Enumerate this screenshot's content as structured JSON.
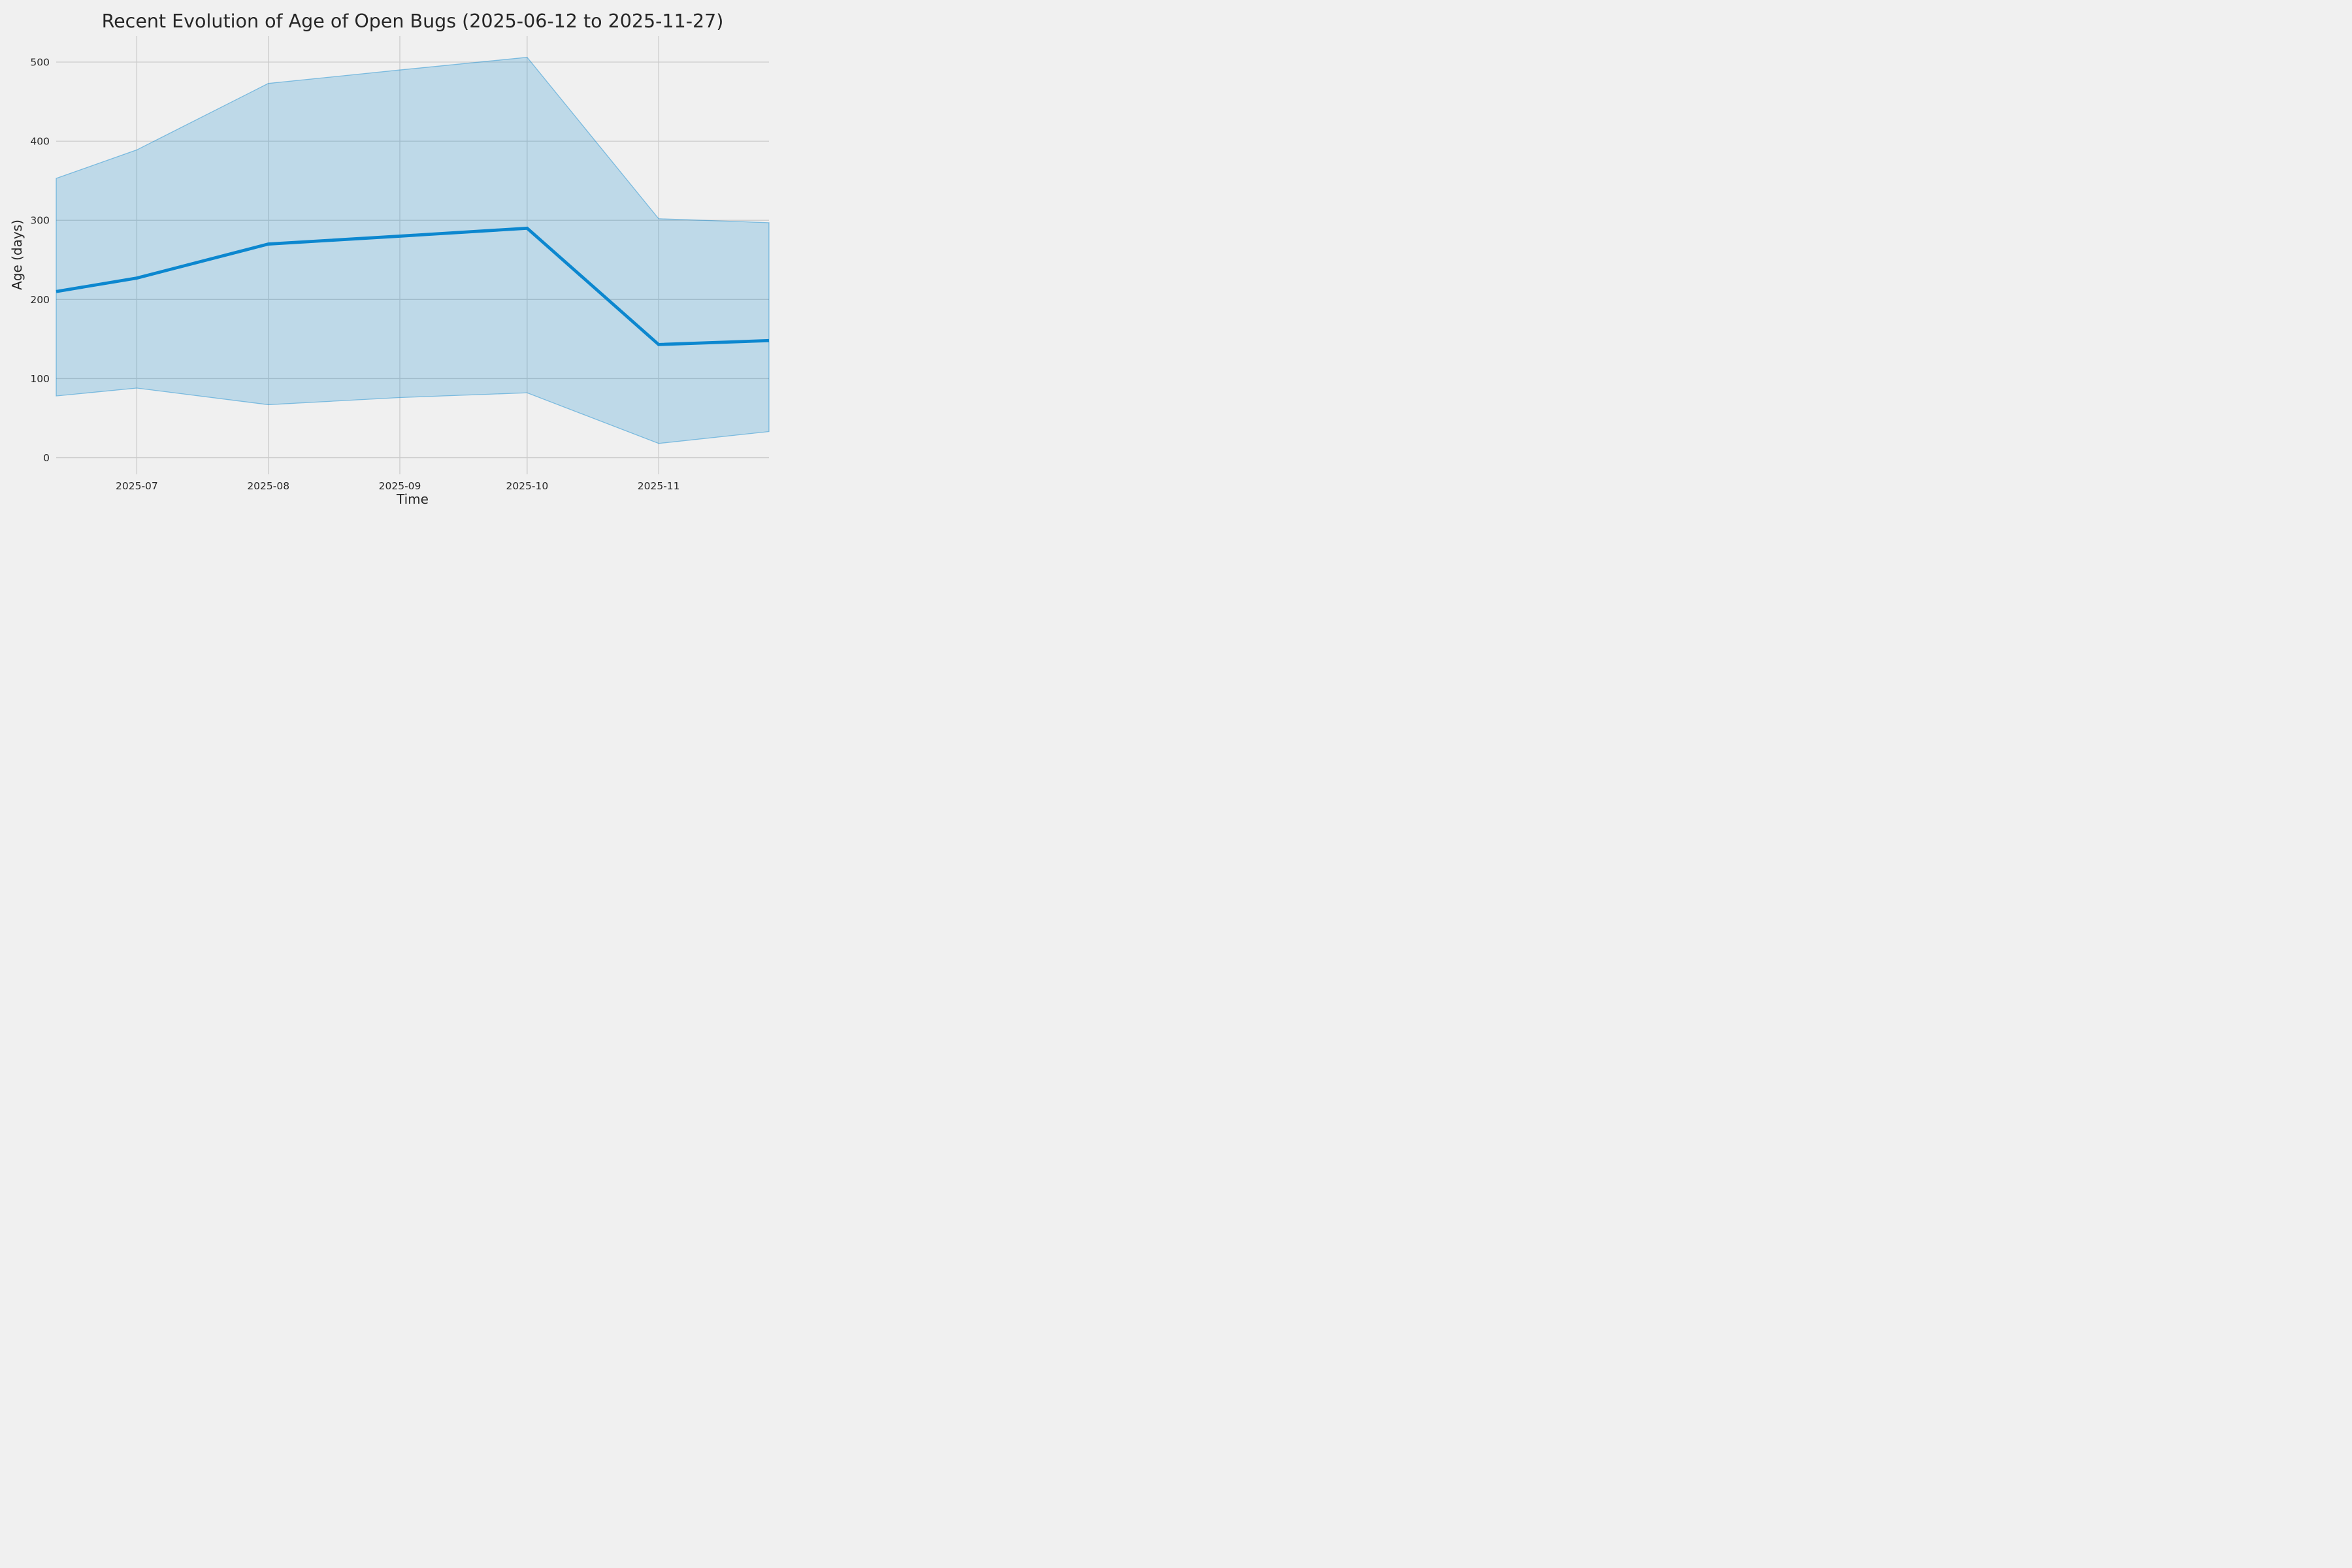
{
  "figure": {
    "title": "Recent Evolution of Age of Open Bugs (2025-06-12 to 2025-11-27)",
    "xlabel": "Time",
    "ylabel": "Age (days)"
  },
  "chart_data": {
    "type": "line",
    "title": "Recent Evolution of Age of Open Bugs (2025-06-12 to 2025-11-27)",
    "xlabel": "Time",
    "ylabel": "Age (days)",
    "x": [
      "2025-06-12",
      "2025-07-01",
      "2025-08-01",
      "2025-09-01",
      "2025-10-01",
      "2025-11-01",
      "2025-11-27"
    ],
    "series": [
      {
        "name": "mean_age",
        "role": "line",
        "values": [
          210,
          227,
          270,
          280,
          290,
          143,
          148
        ]
      },
      {
        "name": "band_upper",
        "role": "band-upper",
        "values": [
          353,
          389,
          473,
          490,
          506,
          302,
          297
        ]
      },
      {
        "name": "band_lower",
        "role": "band-lower",
        "values": [
          78,
          88,
          67,
          76,
          82,
          18,
          33
        ]
      }
    ],
    "x_ticks": [
      {
        "date": "2025-07-01",
        "label": "2025-07"
      },
      {
        "date": "2025-08-01",
        "label": "2025-08"
      },
      {
        "date": "2025-09-01",
        "label": "2025-09"
      },
      {
        "date": "2025-10-01",
        "label": "2025-10"
      },
      {
        "date": "2025-11-01",
        "label": "2025-11"
      }
    ],
    "y_ticks": [
      0,
      100,
      200,
      300,
      400,
      500
    ],
    "xlim": [
      "2025-06-12",
      "2025-11-27"
    ],
    "ylim": [
      -21,
      533
    ],
    "grid": true,
    "legend": false,
    "colors": {
      "background": "#f0f0f0",
      "grid": "#cbcbcb",
      "line": "#0c87cf",
      "band": "#0c87cf",
      "band_opacity": 0.22,
      "band_edge_opacity": 0.45,
      "text": "#262626"
    }
  }
}
